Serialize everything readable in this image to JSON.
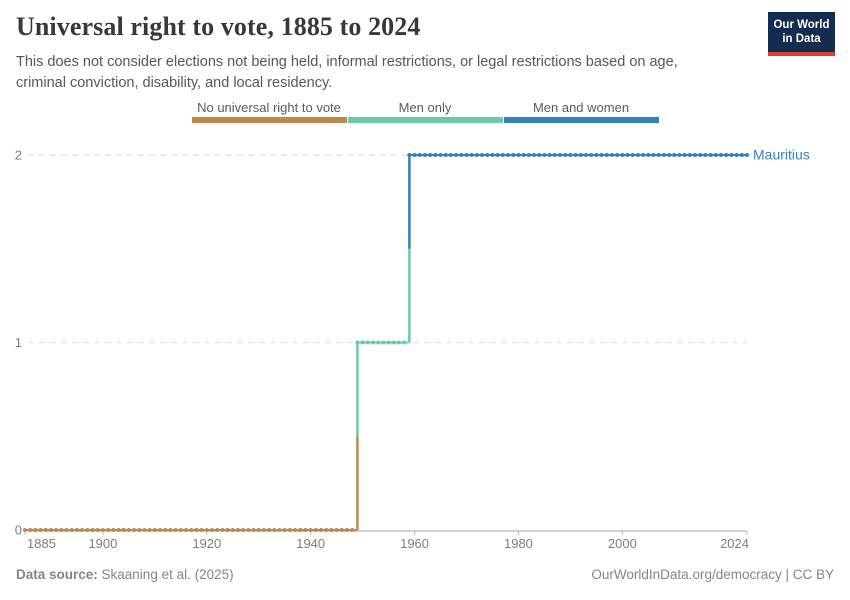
{
  "header": {
    "title": "Universal right to vote, 1885 to 2024",
    "subtitle": "This does not consider elections not being held, informal restrictions, or legal restrictions based on age, criminal conviction, disability, and local residency.",
    "logo": {
      "line1": "Our World",
      "line2": "in Data"
    }
  },
  "legend": {
    "items": [
      {
        "label": "No universal right to vote",
        "color": "#BB8A4D"
      },
      {
        "label": "Men only",
        "color": "#6FC7A9"
      },
      {
        "label": "Men and women",
        "color": "#3580BE"
      }
    ]
  },
  "chart_data": {
    "type": "line",
    "title": "Universal right to vote, 1885 to 2024",
    "entity": "Mauritius",
    "xlim": [
      1885,
      2024
    ],
    "ylim": [
      0,
      2
    ],
    "x_ticks": [
      1885,
      1900,
      1920,
      1940,
      1960,
      1980,
      2000,
      2024
    ],
    "y_ticks": [
      0,
      1,
      2
    ],
    "grid": true,
    "legend_position": "top",
    "value_labels": {
      "0": "No universal right to vote",
      "1": "Men only",
      "2": "Men and women"
    },
    "series": [
      {
        "name": "Mauritius",
        "segments": [
          {
            "label": "No universal right to vote",
            "value": 0,
            "from_year": 1885,
            "to_year": 1948,
            "color": "#BB8A4D"
          },
          {
            "label": "Men only",
            "value": 1,
            "from_year": 1949,
            "to_year": 1958,
            "color": "#6FC7A9"
          },
          {
            "label": "Men and women",
            "value": 2,
            "from_year": 1959,
            "to_year": 2024,
            "color": "#3580BE"
          }
        ]
      }
    ],
    "colors": {
      "grid": "#E2E2E2",
      "axis": "#A3A3A3",
      "tick": "#B8B8B8",
      "tick_label": "#7E7E7E",
      "entity_label": "#3580BE"
    }
  },
  "footer": {
    "source_label": "Data source:",
    "source_value": " Skaaning et al. (2025)",
    "right_text": "OurWorldInData.org/democracy | CC BY"
  }
}
